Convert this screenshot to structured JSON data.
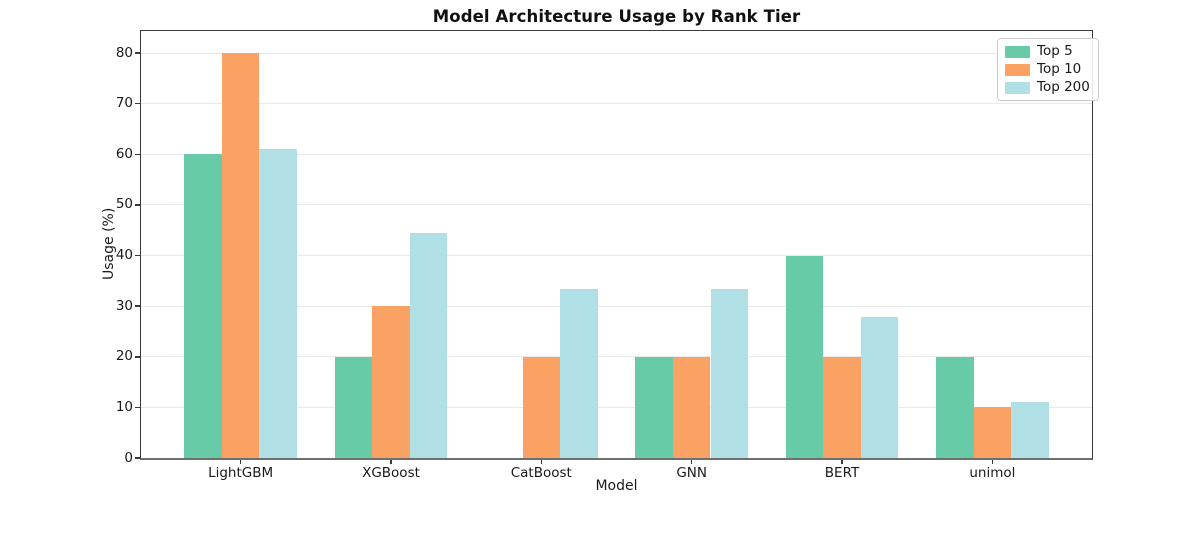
{
  "chart_data": {
    "type": "bar",
    "title": "Model Architecture Usage by Rank Tier",
    "xlabel": "Model",
    "ylabel": "Usage (%)",
    "categories": [
      "LightGBM",
      "XGBoost",
      "CatBoost",
      "GNN",
      "BERT",
      "unimol"
    ],
    "series": [
      {
        "name": "Top 5",
        "color": "#66cba6",
        "values": [
          60,
          20,
          0,
          20,
          40,
          20
        ]
      },
      {
        "name": "Top 10",
        "color": "#f9a263",
        "values": [
          80,
          30,
          20,
          20,
          20,
          10
        ]
      },
      {
        "name": "Top 200",
        "color": "#b0dfe6",
        "values": [
          61.1,
          44.4,
          33.3,
          33.3,
          27.8,
          11.1
        ]
      }
    ],
    "yticks": [
      0,
      10,
      20,
      30,
      40,
      50,
      60,
      70,
      80
    ],
    "ylim": [
      0,
      84.35
    ],
    "grid": true,
    "legend_position": "upper right",
    "colors": {
      "grid": "#e9e9e9",
      "spine": "#3a3a3a",
      "baseline": "#6f6f6f",
      "text": "#1a1a1a"
    }
  }
}
